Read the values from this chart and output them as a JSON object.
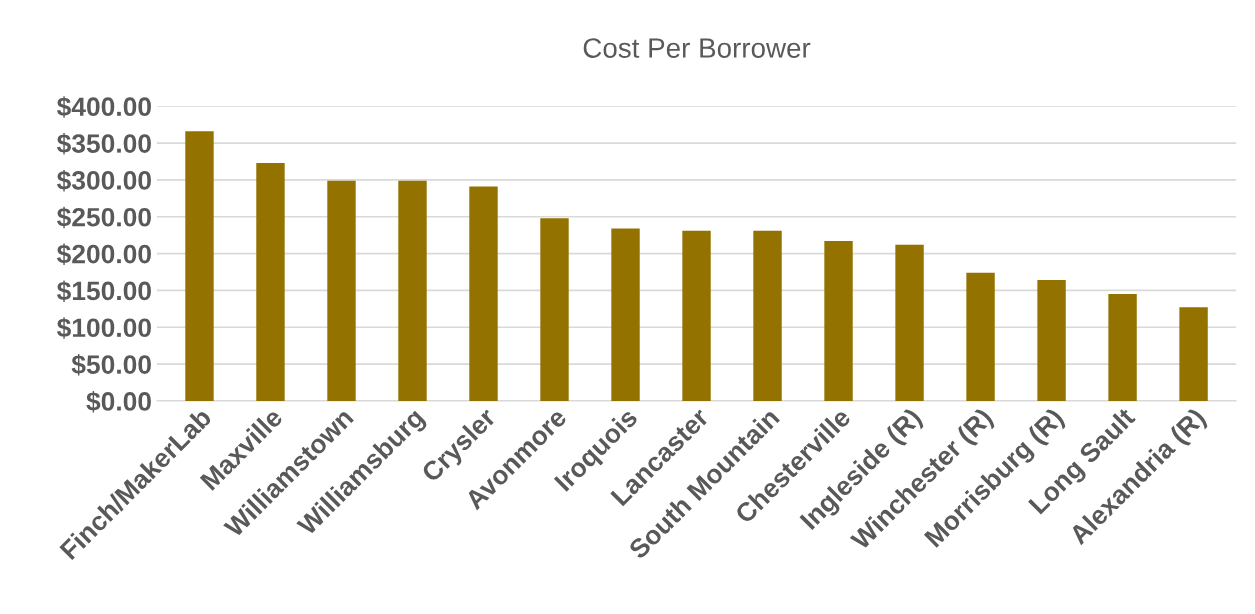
{
  "chart_data": {
    "type": "bar",
    "title": "Cost Per Borrower",
    "categories": [
      "Finch/MakerLab",
      "Maxville",
      "Williamstown",
      "Williamsburg",
      "Crysler",
      "Avonmore",
      "Iroquois",
      "Lancaster",
      "South Mountain",
      "Chesterville",
      "Ingleside (R)",
      "Winchester (R)",
      "Morrisburg (R)",
      "Long Sault",
      "Alexandria (R)"
    ],
    "values": [
      366,
      323,
      299,
      299,
      291,
      248,
      234,
      231,
      231,
      217,
      212,
      174,
      164,
      145,
      127
    ],
    "color": "#937200",
    "ylim": [
      0,
      400
    ],
    "yticks": [
      {
        "value": 0,
        "label": "$0.00"
      },
      {
        "value": 50,
        "label": "$50.00"
      },
      {
        "value": 100,
        "label": "$100.00"
      },
      {
        "value": 150,
        "label": "$150.00"
      },
      {
        "value": 200,
        "label": "$200.00"
      },
      {
        "value": 250,
        "label": "$250.00"
      },
      {
        "value": 300,
        "label": "$300.00"
      },
      {
        "value": 350,
        "label": "$350.00"
      },
      {
        "value": 400,
        "label": "$400.00"
      }
    ],
    "grid": "y"
  }
}
